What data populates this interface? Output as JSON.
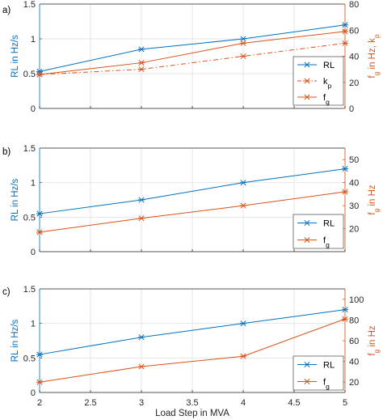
{
  "colors": {
    "blue": "#0072BD",
    "orange": "#D95319",
    "grid": "#e6e6e6",
    "axis": "#262626"
  },
  "xlabel": "Load Step in MVA",
  "x_ticks": [
    "2",
    "2.5",
    "3",
    "3.5",
    "4",
    "4.5",
    "5"
  ],
  "chart_data": [
    {
      "type": "line",
      "panel_label": "a)",
      "xlim": [
        2,
        5
      ],
      "ylabel_left": "RL in Hz/s",
      "ylim_left": [
        0,
        1.5
      ],
      "yticks_left": [
        "0",
        "0.5",
        "1",
        "1.5"
      ],
      "ylabel_right_main": "f",
      "ylabel_right_sub": "g",
      "ylabel_right_tail": " in Hz, k",
      "ylabel_right_tail_sub": "p",
      "ylim_right": [
        0,
        80
      ],
      "yticks_right": [
        "0",
        "20",
        "40",
        "60",
        "80"
      ],
      "grid": true,
      "legend_position": "bottom-right",
      "series": [
        {
          "name": "RL",
          "axis": "left",
          "style": "solid",
          "color": "blue",
          "x": [
            2,
            3,
            4,
            5
          ],
          "y": [
            0.53,
            0.85,
            1.0,
            1.2
          ]
        },
        {
          "name": "k",
          "name_sub": "p",
          "axis": "right",
          "style": "dashdot",
          "color": "orange",
          "x": [
            2,
            3,
            4,
            5
          ],
          "y": [
            26,
            30,
            40,
            50
          ]
        },
        {
          "name": "f",
          "name_sub": "g",
          "axis": "right",
          "style": "solid",
          "color": "orange",
          "x": [
            2,
            3,
            4,
            5
          ],
          "y": [
            26,
            35,
            50,
            59
          ]
        }
      ]
    },
    {
      "type": "line",
      "panel_label": "b)",
      "xlim": [
        2,
        5
      ],
      "ylabel_left": "RL in Hz/s",
      "ylim_left": [
        0,
        1.5
      ],
      "yticks_left": [
        "0",
        "0.5",
        "1",
        "1.5"
      ],
      "ylabel_right_main": "f",
      "ylabel_right_sub": "g",
      "ylabel_right_tail": " in Hz",
      "ylabel_right_tail_sub": "",
      "ylim_right": [
        10,
        55
      ],
      "yticks_right": [
        "20",
        "30",
        "40",
        "50"
      ],
      "grid": true,
      "legend_position": "bottom-right",
      "series": [
        {
          "name": "RL",
          "axis": "left",
          "style": "solid",
          "color": "blue",
          "x": [
            2,
            3,
            4,
            5
          ],
          "y": [
            0.55,
            0.75,
            1.0,
            1.2
          ]
        },
        {
          "name": "f",
          "name_sub": "g",
          "axis": "right",
          "style": "solid",
          "color": "orange",
          "x": [
            2,
            3,
            4,
            5
          ],
          "y": [
            18.5,
            24.5,
            30,
            36
          ]
        }
      ]
    },
    {
      "type": "line",
      "panel_label": "c)",
      "xlim": [
        2,
        5
      ],
      "ylabel_left": "RL in Hz/s",
      "ylim_left": [
        0,
        1.5
      ],
      "yticks_left": [
        "0",
        "0.5",
        "1",
        "1.5"
      ],
      "ylabel_right_main": "f",
      "ylabel_right_sub": "g",
      "ylabel_right_tail": " in Hz",
      "ylabel_right_tail_sub": "",
      "ylim_right": [
        10,
        110
      ],
      "yticks_right": [
        "20",
        "40",
        "60",
        "80",
        "100"
      ],
      "grid": true,
      "legend_position": "bottom-right",
      "series": [
        {
          "name": "RL",
          "axis": "left",
          "style": "solid",
          "color": "blue",
          "x": [
            2,
            3,
            4,
            5
          ],
          "y": [
            0.55,
            0.8,
            1.0,
            1.2
          ]
        },
        {
          "name": "f",
          "name_sub": "g",
          "axis": "right",
          "style": "solid",
          "color": "orange",
          "x": [
            2,
            3,
            4,
            5
          ],
          "y": [
            20,
            35,
            45,
            81
          ]
        }
      ]
    }
  ]
}
